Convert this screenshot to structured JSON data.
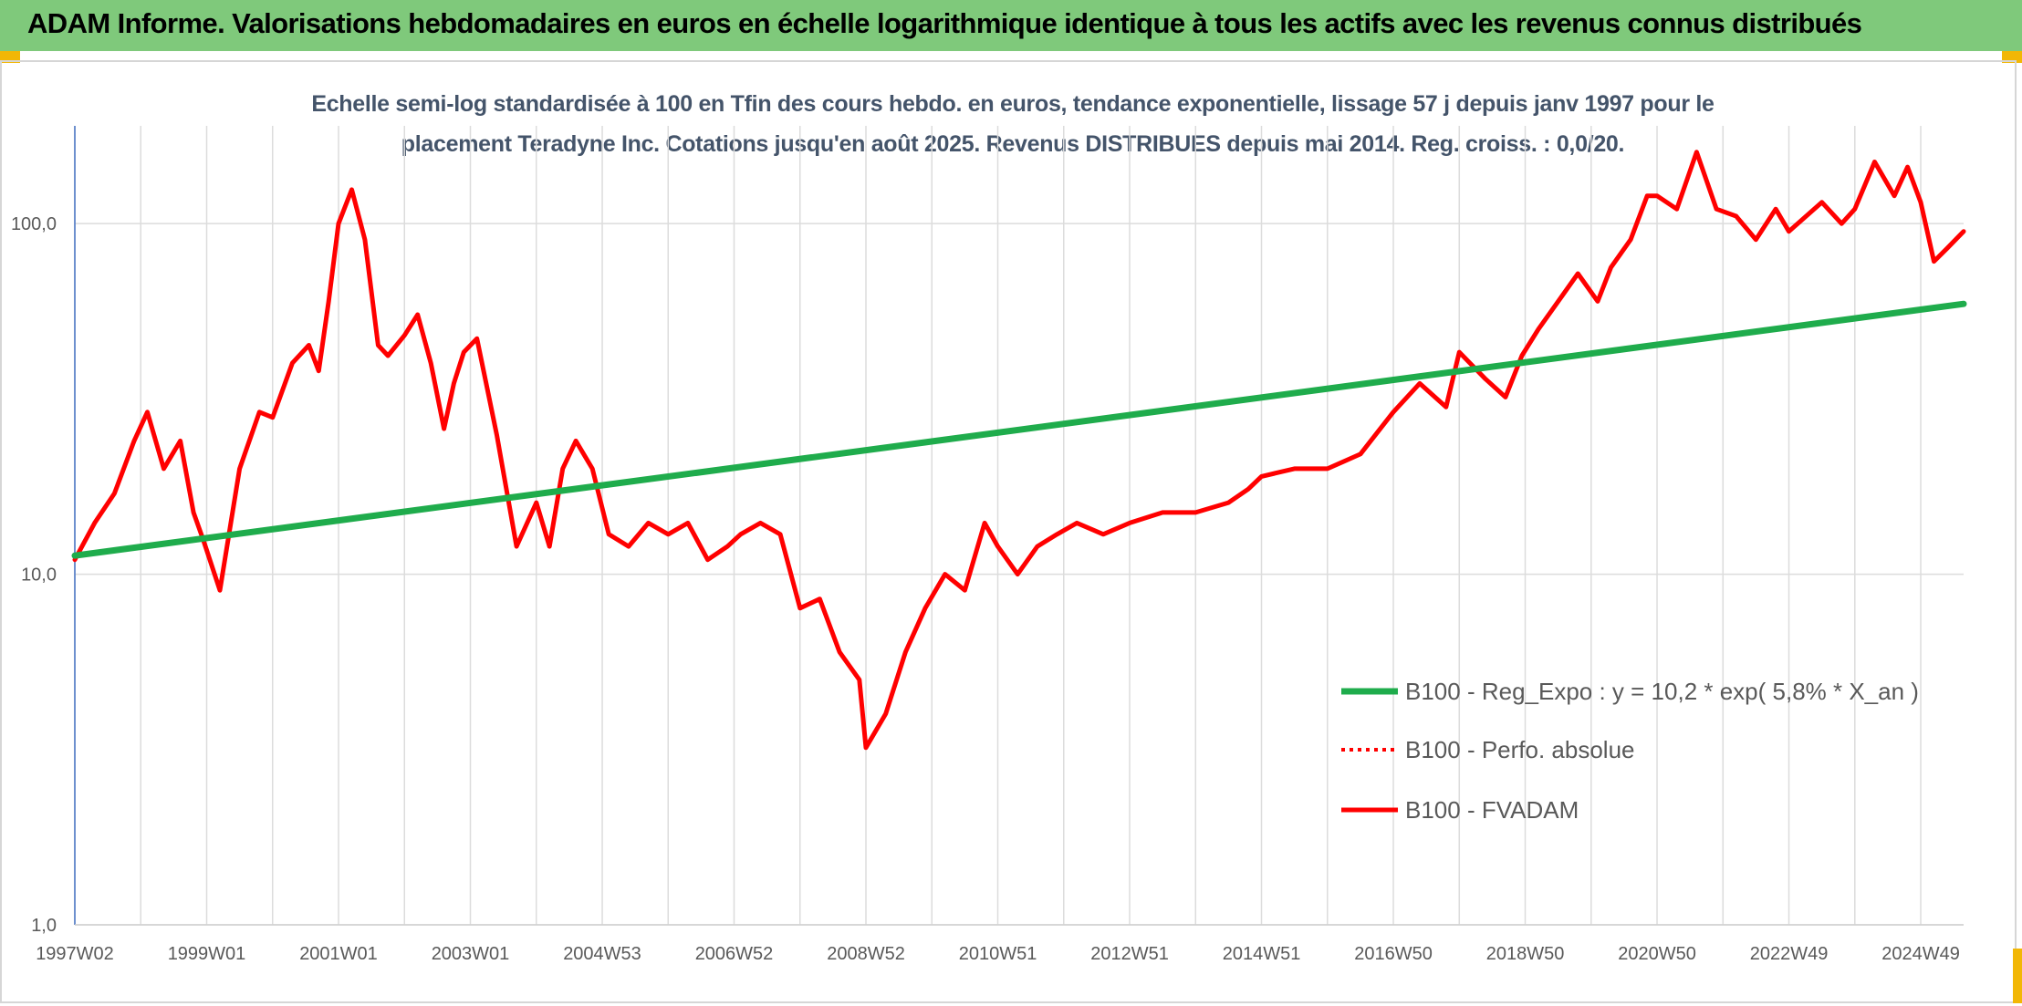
{
  "banner": {
    "title": "ADAM Informe. Valorisations hebdomadaires en euros en échelle logarithmique identique à tous les actifs avec les revenus connus distribués"
  },
  "colors": {
    "banner": "#7fc97b",
    "fvadam": "#ff0000",
    "reg_expo": "#1fac4c",
    "perfo": "#ff0000",
    "corner": "#f2b705"
  },
  "chart_data": {
    "type": "line",
    "title": "Echelle semi-log standardisée à 100 en Tfin des cours hebdo. en euros, tendance exponentielle, lissage 57 j depuis janv 1997 pour le placement Teradyne Inc. Cotations jusqu'en août 2025. Revenus DISTRIBUES depuis mai 2014. Reg. croiss. : 0,0/20.",
    "title_lines": [
      "Echelle semi-log standardisée à 100 en Tfin des cours hebdo. en euros, tendance exponentielle, lissage 57 j depuis janv 1997 pour le",
      "placement Teradyne Inc. Cotations jusqu'en août 2025. Revenus DISTRIBUES depuis mai 2014. Reg. croiss. : 0,0/20."
    ],
    "y_scale": "log",
    "ylim": [
      1,
      190
    ],
    "xlim": [
      1997.0,
      2025.65
    ],
    "y_ticks": [
      {
        "value": 1,
        "label": "1,0"
      },
      {
        "value": 10,
        "label": "10,0"
      },
      {
        "value": 100,
        "label": "100,0"
      }
    ],
    "x_ticks": [
      {
        "value": 1997.0,
        "label": "1997W02"
      },
      {
        "value": 1999.0,
        "label": "1999W01"
      },
      {
        "value": 2001.0,
        "label": "2001W01"
      },
      {
        "value": 2003.0,
        "label": "2003W01"
      },
      {
        "value": 2005.0,
        "label": "2004W53"
      },
      {
        "value": 2007.0,
        "label": "2006W52"
      },
      {
        "value": 2009.0,
        "label": "2008W52"
      },
      {
        "value": 2011.0,
        "label": "2010W51"
      },
      {
        "value": 2013.0,
        "label": "2012W51"
      },
      {
        "value": 2015.0,
        "label": "2014W51"
      },
      {
        "value": 2017.0,
        "label": "2016W50"
      },
      {
        "value": 2019.0,
        "label": "2018W50"
      },
      {
        "value": 2021.0,
        "label": "2020W50"
      },
      {
        "value": 2023.0,
        "label": "2022W49"
      },
      {
        "value": 2025.0,
        "label": "2024W49"
      }
    ],
    "grid": "vertical lines every year, horizontal lines at 1, 10, 100",
    "legend_position": "bottom-right",
    "series": [
      {
        "name": "B100 - Reg_Expo : y = 10,2 * exp( 5,8% *  X_an )",
        "style": "solid-thick",
        "x": [
          1997.0,
          2025.65
        ],
        "y": [
          11.3,
          59.0
        ]
      },
      {
        "name": "B100 - Perfo. absolue",
        "style": "dotted",
        "x": [],
        "y": []
      },
      {
        "name": "B100 - FVADAM",
        "style": "solid",
        "x": [
          1997.0,
          1997.3,
          1997.6,
          1997.9,
          1998.1,
          1998.35,
          1998.6,
          1998.8,
          1998.95,
          1999.2,
          1999.5,
          1999.8,
          2000.0,
          2000.3,
          2000.55,
          2000.7,
          2000.85,
          2001.0,
          2001.2,
          2001.4,
          2001.6,
          2001.75,
          2002.0,
          2002.2,
          2002.4,
          2002.6,
          2002.75,
          2002.9,
          2003.1,
          2003.4,
          2003.7,
          2004.0,
          2004.2,
          2004.4,
          2004.6,
          2004.85,
          2005.1,
          2005.4,
          2005.7,
          2006.0,
          2006.3,
          2006.6,
          2006.9,
          2007.1,
          2007.4,
          2007.7,
          2008.0,
          2008.3,
          2008.6,
          2008.9,
          2009.0,
          2009.3,
          2009.6,
          2009.9,
          2010.2,
          2010.5,
          2010.8,
          2011.0,
          2011.3,
          2011.6,
          2011.9,
          2012.2,
          2012.6,
          2013.0,
          2013.5,
          2014.0,
          2014.5,
          2014.8,
          2015.0,
          2015.5,
          2016.0,
          2016.5,
          2017.0,
          2017.4,
          2017.8,
          2018.0,
          2018.4,
          2018.7,
          2018.95,
          2019.2,
          2019.5,
          2019.8,
          2020.1,
          2020.3,
          2020.6,
          2020.85,
          2021.0,
          2021.3,
          2021.6,
          2021.9,
          2022.2,
          2022.5,
          2022.8,
          2023.0,
          2023.5,
          2023.8,
          2024.0,
          2024.3,
          2024.6,
          2024.8,
          2025.0,
          2025.2,
          2025.4,
          2025.65
        ],
        "y": [
          11.0,
          14.0,
          17.0,
          24.0,
          29.0,
          20.0,
          24.0,
          15.0,
          12.5,
          9.0,
          20.0,
          29.0,
          28.0,
          40.0,
          45.0,
          38.0,
          60.0,
          100.0,
          125.0,
          90.0,
          45.0,
          42.0,
          48.0,
          55.0,
          40.0,
          26.0,
          35.0,
          43.0,
          47.0,
          25.0,
          12.0,
          16.0,
          12.0,
          20.0,
          24.0,
          20.0,
          13.0,
          12.0,
          14.0,
          13.0,
          14.0,
          11.0,
          12.0,
          13.0,
          14.0,
          13.0,
          8.0,
          8.5,
          6.0,
          5.0,
          3.2,
          4.0,
          6.0,
          8.0,
          10.0,
          9.0,
          14.0,
          12.0,
          10.0,
          12.0,
          13.0,
          14.0,
          13.0,
          14.0,
          15.0,
          15.0,
          16.0,
          17.5,
          19.0,
          20.0,
          20.0,
          22.0,
          29.0,
          35.0,
          30.0,
          43.0,
          36.0,
          32.0,
          42.0,
          50.0,
          60.0,
          72.0,
          60.0,
          75.0,
          90.0,
          120.0,
          120.0,
          110.0,
          160.0,
          110.0,
          105.0,
          90.0,
          110.0,
          95.0,
          115.0,
          100.0,
          110.0,
          150.0,
          120.0,
          145.0,
          115.0,
          78.0,
          85.0,
          95.0
        ]
      }
    ]
  }
}
